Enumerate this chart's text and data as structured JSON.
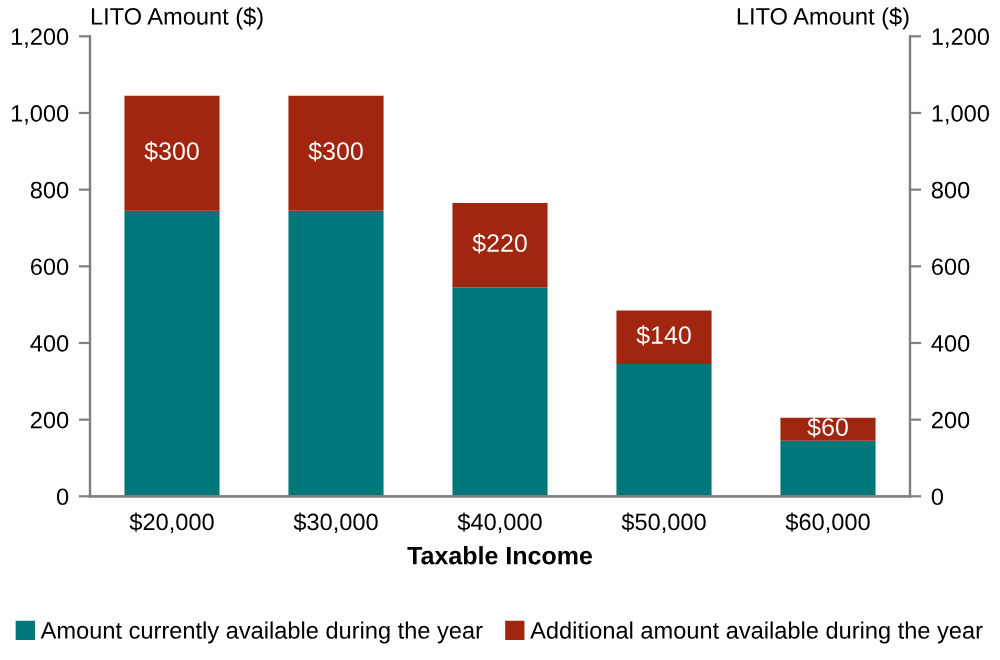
{
  "chart_data": {
    "type": "bar",
    "stacked": true,
    "xlabel": "Taxable Income",
    "ylabel": "LITO Amount ($)",
    "y2label": "LITO Amount ($)",
    "categories": [
      "$20,000",
      "$30,000",
      "$40,000",
      "$50,000",
      "$60,000"
    ],
    "series": [
      {
        "name": "Amount currently available during the year",
        "color": "#00777a",
        "values": [
          745,
          745,
          545,
          345,
          145
        ]
      },
      {
        "name": "Additional amount available during the year",
        "color": "#a0260f",
        "values": [
          300,
          300,
          220,
          140,
          60
        ],
        "value_labels": [
          "$300",
          "$300",
          "$220",
          "$140",
          "$60"
        ]
      }
    ],
    "ylim": [
      0,
      1200
    ],
    "yticks": [
      0,
      {
        "value": 200,
        "label": "200"
      },
      {
        "value": 400,
        "label": "400"
      },
      {
        "value": 600,
        "label": "600"
      },
      {
        "value": 800,
        "label": "800"
      },
      {
        "value": 1000,
        "label": "1,000"
      },
      {
        "value": 1200,
        "label": "1,200"
      }
    ],
    "y2lim": [
      0,
      1200
    ],
    "y2ticks": [
      0,
      {
        "value": 200,
        "label": "200"
      },
      {
        "value": 400,
        "label": "400"
      },
      {
        "value": 600,
        "label": "600"
      },
      {
        "value": 800,
        "label": "800"
      },
      {
        "value": 1000,
        "label": "1,000"
      },
      {
        "value": 1200,
        "label": "1,200"
      }
    ],
    "grid": false,
    "legend": "bottom"
  }
}
